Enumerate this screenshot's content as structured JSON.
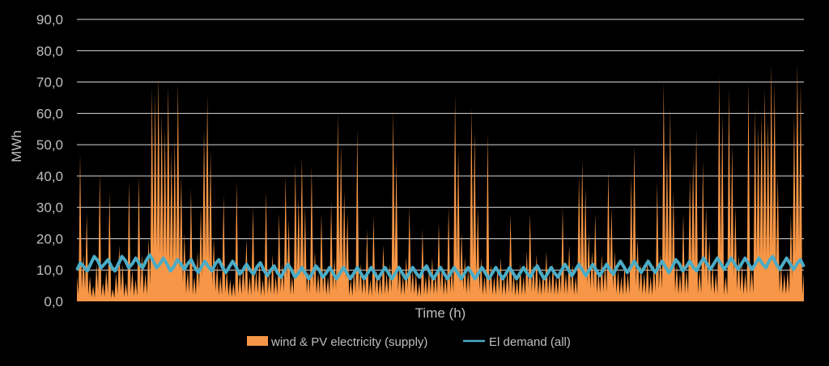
{
  "chart_data": {
    "type": "area",
    "title": "",
    "xlabel": "Time (h)",
    "ylabel": "MWh",
    "ylim": [
      0,
      90
    ],
    "yticks": [
      "0,0",
      "10,0",
      "20,0",
      "30,0",
      "40,0",
      "50,0",
      "60,0",
      "70,0",
      "80,0",
      "90,0"
    ],
    "grid": true,
    "legend_position": "bottom",
    "series": [
      {
        "name": "wind & PV electricity (supply)",
        "kind": "area",
        "color": "#f79646",
        "values": [
          8,
          47,
          15,
          28,
          8,
          5,
          12,
          41,
          6,
          10,
          35,
          4,
          9,
          18,
          12,
          6,
          38,
          10,
          7,
          40,
          15,
          9,
          20,
          68,
          66,
          72,
          60,
          55,
          69,
          48,
          52,
          70,
          40,
          22,
          10,
          36,
          8,
          16,
          30,
          55,
          66,
          48,
          20,
          12,
          8,
          34,
          10,
          7,
          6,
          38,
          9,
          12,
          20,
          8,
          30,
          10,
          13,
          7,
          35,
          9,
          15,
          8,
          28,
          12,
          40,
          26,
          8,
          44,
          33,
          46,
          30,
          10,
          43,
          16,
          9,
          28,
          11,
          8,
          32,
          14,
          60,
          50,
          35,
          28,
          7,
          10,
          55,
          12,
          9,
          23,
          7,
          27,
          10,
          8,
          18,
          9,
          12,
          61,
          45,
          12,
          8,
          14,
          30,
          10,
          9,
          6,
          23,
          8,
          10,
          14,
          9,
          25,
          12,
          8,
          30,
          11,
          66,
          48,
          22,
          14,
          10,
          62,
          54,
          30,
          14,
          8,
          54,
          12,
          8,
          11,
          14,
          8,
          10,
          28,
          9,
          7,
          12,
          8,
          16,
          28,
          12,
          15,
          8,
          10,
          16,
          9,
          12,
          8,
          10,
          30,
          9,
          18,
          12,
          8,
          40,
          45,
          36,
          22,
          16,
          28,
          10,
          15,
          12,
          42,
          30,
          16,
          10,
          8,
          12,
          9,
          40,
          50,
          20,
          12,
          9,
          14,
          8,
          12,
          38,
          15,
          70,
          48,
          62,
          35,
          12,
          9,
          28,
          10,
          40,
          45,
          55,
          10,
          45,
          30,
          20,
          12,
          9,
          72,
          60,
          8,
          68,
          50,
          30,
          15,
          12,
          9,
          70,
          10,
          62,
          56,
          60,
          68,
          58,
          76,
          70,
          40,
          12,
          9,
          10,
          28,
          60,
          76,
          70,
          9
        ]
      },
      {
        "name": "El demand (all)",
        "kind": "line",
        "color": "#4bacc6",
        "values": [
          10,
          11,
          12,
          13,
          12,
          11,
          12,
          13,
          12,
          12,
          13,
          13,
          12,
          12,
          11,
          12,
          12,
          11,
          11,
          11,
          12,
          11,
          11,
          11,
          10,
          10,
          11,
          10,
          10,
          9,
          10,
          10,
          9,
          9,
          9,
          10,
          9,
          9,
          9,
          9,
          9,
          9,
          9,
          9,
          9,
          9,
          9,
          9,
          9,
          9,
          10,
          9,
          9,
          9,
          9,
          9,
          9,
          9,
          9,
          9,
          9,
          9,
          9,
          9,
          9,
          9,
          10,
          9,
          9,
          9,
          10,
          10,
          10,
          10,
          10,
          10,
          10,
          10,
          11,
          11,
          11,
          11,
          11,
          11,
          11,
          11,
          11,
          12,
          11,
          11,
          12,
          12,
          12,
          12,
          12,
          12,
          12,
          12,
          12,
          12,
          13,
          12,
          12,
          12,
          12,
          11
        ]
      }
    ]
  }
}
